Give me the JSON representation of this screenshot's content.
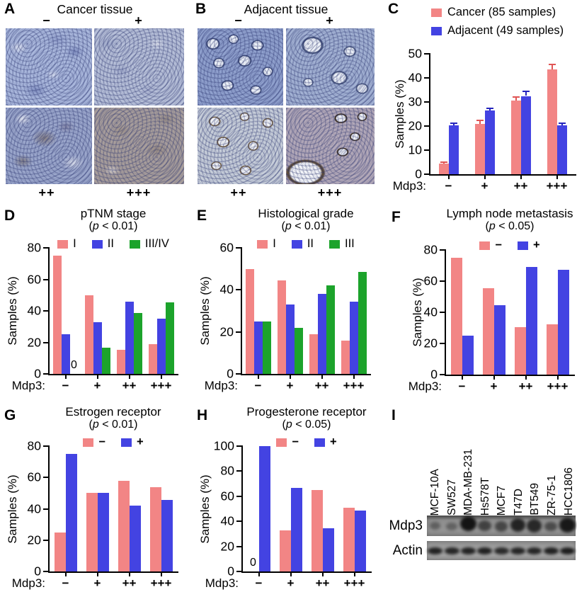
{
  "panels": {
    "A": {
      "letter": "A",
      "title": "Cancer tissue",
      "top_labels": [
        "−",
        "+"
      ],
      "bottom_labels": [
        "++",
        "+++"
      ]
    },
    "B": {
      "letter": "B",
      "title": "Adjacent tissue",
      "top_labels": [
        "−",
        "+"
      ],
      "bottom_labels": [
        "++",
        "+++"
      ]
    },
    "C": {
      "letter": "C"
    },
    "D": {
      "letter": "D"
    },
    "E": {
      "letter": "E"
    },
    "F": {
      "letter": "F"
    },
    "G": {
      "letter": "G"
    },
    "H": {
      "letter": "H"
    },
    "I": {
      "letter": "I"
    }
  },
  "chart_data": [
    {
      "id": "C",
      "type": "bar",
      "title": "",
      "subtitle": "",
      "x_prefix": "Mdp3:",
      "categories": [
        "−",
        "+",
        "++",
        "+++"
      ],
      "series": [
        {
          "name": "Cancer (85 samples)",
          "color": "#f28585",
          "error_color": "#e05555",
          "values": [
            4.5,
            21,
            30.5,
            43.5
          ],
          "errors": [
            0.6,
            1.3,
            1.7,
            2.0
          ]
        },
        {
          "name": "Adjacent (49 samples)",
          "color": "#4343e2",
          "error_color": "#2525bd",
          "values": [
            20.3,
            26.5,
            32.5,
            20.3
          ],
          "errors": [
            1.0,
            1.0,
            1.8,
            1.0
          ]
        }
      ],
      "ylabel": "Samples (%)",
      "ylim": [
        0,
        50
      ],
      "yticks": [
        0,
        10,
        20,
        30,
        40,
        50
      ],
      "legend_position": "top-right-stacked",
      "grid": false
    },
    {
      "id": "D",
      "type": "bar",
      "title": "pTNM stage",
      "subtitle": "(p < 0.01)",
      "x_prefix": "Mdp3:",
      "categories": [
        "−",
        "+",
        "++",
        "+++"
      ],
      "series": [
        {
          "name": "I",
          "color": "#f28585",
          "values": [
            75,
            50,
            15.5,
            19
          ]
        },
        {
          "name": "II",
          "color": "#4343e2",
          "values": [
            25,
            33,
            46,
            35
          ]
        },
        {
          "name": "III/IV",
          "color": "#1ca32b",
          "values": [
            0,
            16.5,
            38.5,
            45.5
          ]
        }
      ],
      "ylabel": "Samples (%)",
      "ylim": [
        0,
        80
      ],
      "yticks": [
        0,
        20,
        40,
        60,
        80
      ],
      "zero_label": "0",
      "legend_position": "top",
      "grid": false
    },
    {
      "id": "E",
      "type": "bar",
      "title": "Histological grade",
      "subtitle": "(p < 0.01)",
      "x_prefix": "Mdp3:",
      "categories": [
        "−",
        "+",
        "++",
        "+++"
      ],
      "series": [
        {
          "name": "I",
          "color": "#f28585",
          "values": [
            50,
            44.5,
            19,
            16
          ]
        },
        {
          "name": "II",
          "color": "#4343e2",
          "values": [
            25,
            33,
            38,
            34.5
          ]
        },
        {
          "name": "III",
          "color": "#1ca32b",
          "values": [
            25,
            22,
            42,
            48.5
          ]
        }
      ],
      "ylabel": "Samples (%)",
      "ylim": [
        0,
        60
      ],
      "yticks": [
        0,
        20,
        40,
        60
      ],
      "legend_position": "top",
      "grid": false
    },
    {
      "id": "F",
      "type": "bar",
      "title": "Lymph node metastasis",
      "subtitle": "(p < 0.05)",
      "x_prefix": "Mdp3:",
      "categories": [
        "−",
        "+",
        "++",
        "+++"
      ],
      "series": [
        {
          "name": "−",
          "color": "#f28585",
          "values": [
            75,
            55.5,
            30.5,
            32.5
          ]
        },
        {
          "name": "+",
          "color": "#4343e2",
          "values": [
            25,
            44.5,
            69,
            67.5
          ]
        }
      ],
      "ylabel": "Samples (%)",
      "ylim": [
        0,
        80
      ],
      "yticks": [
        0,
        20,
        40,
        60,
        80
      ],
      "legend_position": "top",
      "grid": false
    },
    {
      "id": "G",
      "type": "bar",
      "title": "Estrogen receptor",
      "subtitle": "(p < 0.01)",
      "x_prefix": "Mdp3:",
      "categories": [
        "−",
        "+",
        "++",
        "+++"
      ],
      "series": [
        {
          "name": "−",
          "color": "#f28585",
          "values": [
            25,
            50,
            58,
            54
          ]
        },
        {
          "name": "+",
          "color": "#4343e2",
          "values": [
            75,
            50,
            42,
            45.5
          ]
        }
      ],
      "ylabel": "Samples (%)",
      "ylim": [
        0,
        80
      ],
      "yticks": [
        0,
        20,
        40,
        60,
        80
      ],
      "legend_position": "top",
      "grid": false
    },
    {
      "id": "H",
      "type": "bar",
      "title": "Progesterone receptor",
      "subtitle": "(p < 0.05)",
      "x_prefix": "Mdp3:",
      "categories": [
        "−",
        "+",
        "++",
        "+++"
      ],
      "series": [
        {
          "name": "−",
          "color": "#f28585",
          "values": [
            0,
            33,
            65,
            51
          ]
        },
        {
          "name": "+",
          "color": "#4343e2",
          "values": [
            100,
            66.5,
            34.5,
            48.5
          ]
        }
      ],
      "ylabel": "Samples (%)",
      "ylim": [
        0,
        100
      ],
      "yticks": [
        0,
        20,
        40,
        60,
        80,
        100
      ],
      "zero_label": "0",
      "legend_position": "top",
      "grid": false
    }
  ],
  "western_blot": {
    "panel": "I",
    "cell_lines": [
      "MCF-10A",
      "SW527",
      "MDA-MB-231",
      "Hs578T",
      "MCF7",
      "T47D",
      "BT549",
      "ZR-75-1",
      "HCC1806"
    ],
    "rows": [
      {
        "label": "Mdp3",
        "band_intensities": [
          0.25,
          0.22,
          1.0,
          0.55,
          0.5,
          0.85,
          0.8,
          0.45,
          0.95
        ]
      },
      {
        "label": "Actin",
        "band_intensities": [
          0.85,
          0.8,
          0.85,
          0.9,
          0.7,
          0.8,
          0.8,
          0.9,
          0.95
        ]
      }
    ]
  },
  "colors": {
    "cancer_pink": "#f28585",
    "adjacent_blue": "#4343e2",
    "green": "#1ca32b",
    "axis": "#000000"
  }
}
